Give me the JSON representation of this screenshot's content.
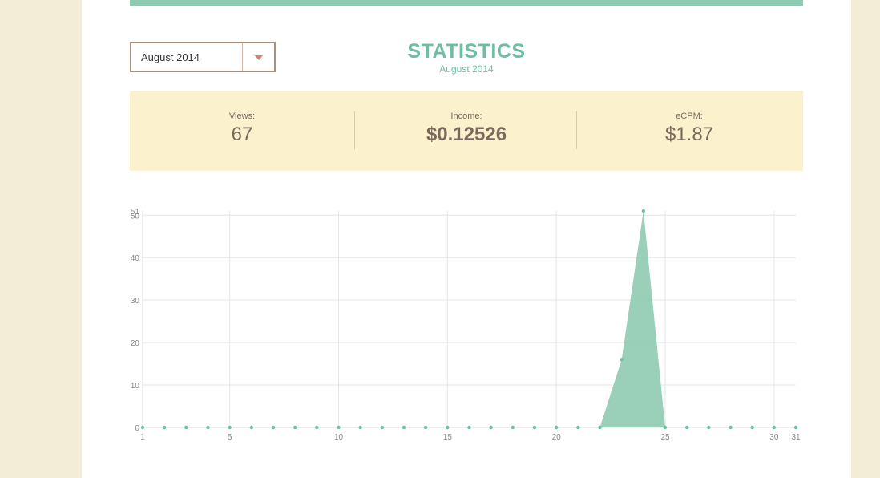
{
  "month_select": {
    "value": "August 2014"
  },
  "header": {
    "title": "STATISTICS",
    "subtitle": "August 2014"
  },
  "stats": {
    "views": {
      "label": "Views:",
      "value": "67"
    },
    "income": {
      "label": "Income:",
      "value": "$0.12526"
    },
    "ecpm": {
      "label": "eCPM:",
      "value": "$1.87"
    }
  },
  "colors": {
    "accent": "#6dbf9f",
    "fill": "#8fcab3",
    "band": "#fcf1cd",
    "caret": "#e07a5f"
  },
  "chart_data": {
    "type": "area",
    "x": [
      1,
      2,
      3,
      4,
      5,
      6,
      7,
      8,
      9,
      10,
      11,
      12,
      13,
      14,
      15,
      16,
      17,
      18,
      19,
      20,
      21,
      22,
      23,
      24,
      25,
      26,
      27,
      28,
      29,
      30,
      31
    ],
    "values": [
      0,
      0,
      0,
      0,
      0,
      0,
      0,
      0,
      0,
      0,
      0,
      0,
      0,
      0,
      0,
      0,
      0,
      0,
      0,
      0,
      0,
      0,
      16,
      51,
      0,
      0,
      0,
      0,
      0,
      0,
      0
    ],
    "xticks": [
      1,
      5,
      10,
      15,
      20,
      25,
      30,
      31
    ],
    "yticks": [
      0,
      10,
      20,
      30,
      40,
      50,
      51
    ],
    "xlim": [
      1,
      31
    ],
    "ylim": [
      0,
      51
    ],
    "grid": true,
    "legend": "none"
  }
}
